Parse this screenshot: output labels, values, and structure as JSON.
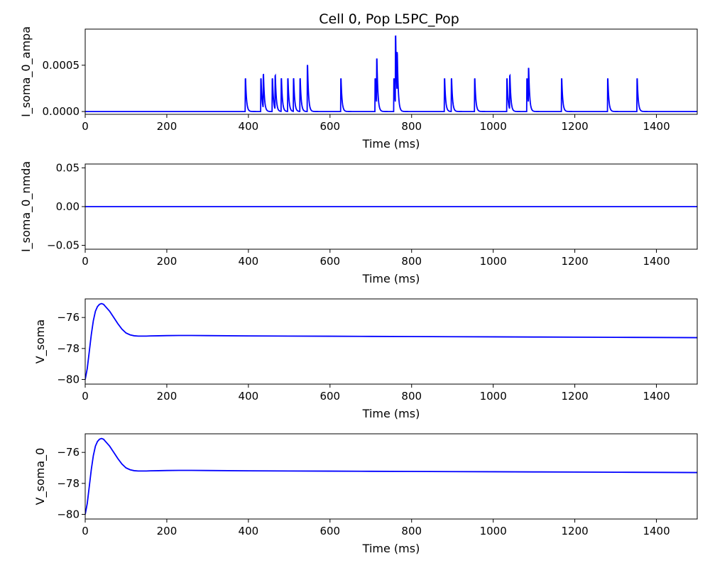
{
  "figure": {
    "title": "Cell 0, Pop L5PC_Pop",
    "line_color": "#0000ff"
  },
  "chart_data": [
    {
      "type": "line",
      "xlabel": "Time (ms)",
      "ylabel": "I_soma_0_ampa",
      "xlim": [
        0,
        1500
      ],
      "ylim": [
        -3e-05,
        0.00089
      ],
      "xticks": [
        0,
        200,
        400,
        600,
        800,
        1000,
        1200,
        1400
      ],
      "xtick_labels": [
        "0",
        "200",
        "400",
        "600",
        "800",
        "1000",
        "1200",
        "1400"
      ],
      "yticks": [
        0.0,
        0.0005
      ],
      "ytick_labels": [
        "0.0000",
        "0.0005"
      ],
      "grid": false,
      "series": [
        {
          "trace": "events",
          "baseline": 0.0,
          "events": [
            [
              392,
              0.00042
            ],
            [
              430,
              0.00042
            ],
            [
              436,
              0.00043
            ],
            [
              458,
              0.00042
            ],
            [
              465,
              0.00043
            ],
            [
              480,
              0.00042
            ],
            [
              496,
              0.00042
            ],
            [
              510,
              0.00042
            ],
            [
              526,
              0.00042
            ],
            [
              544,
              0.00059
            ],
            [
              626,
              0.00042
            ],
            [
              710,
              0.00042
            ],
            [
              714,
              0.00058
            ],
            [
              756,
              0.00042
            ],
            [
              760,
              0.00087
            ],
            [
              764,
              0.00053
            ],
            [
              880,
              0.00042
            ],
            [
              897,
              0.00042
            ],
            [
              954,
              0.00042
            ],
            [
              1033,
              0.00042
            ],
            [
              1040,
              0.00043
            ],
            [
              1082,
              0.00042
            ],
            [
              1086,
              0.00046
            ],
            [
              1167,
              0.00042
            ],
            [
              1280,
              0.00042
            ],
            [
              1352,
              0.00042
            ]
          ]
        }
      ]
    },
    {
      "type": "line",
      "xlabel": "Time (ms)",
      "ylabel": "I_soma_0_nmda",
      "xlim": [
        0,
        1500
      ],
      "ylim": [
        -0.055,
        0.055
      ],
      "xticks": [
        0,
        200,
        400,
        600,
        800,
        1000,
        1200,
        1400
      ],
      "xtick_labels": [
        "0",
        "200",
        "400",
        "600",
        "800",
        "1000",
        "1200",
        "1400"
      ],
      "yticks": [
        -0.05,
        0.0,
        0.05
      ],
      "ytick_labels": [
        "−0.05",
        "0.00",
        "0.05"
      ],
      "grid": false,
      "series": [
        {
          "x": [
            0,
            1500
          ],
          "y": [
            0.0,
            0.0
          ]
        }
      ]
    },
    {
      "type": "line",
      "xlabel": "Time (ms)",
      "ylabel": "V_soma",
      "xlim": [
        0,
        1500
      ],
      "ylim": [
        -80.3,
        -74.8
      ],
      "xticks": [
        0,
        200,
        400,
        600,
        800,
        1000,
        1200,
        1400
      ],
      "xtick_labels": [
        "0",
        "200",
        "400",
        "600",
        "800",
        "1000",
        "1200",
        "1400"
      ],
      "yticks": [
        -80,
        -78,
        -76
      ],
      "ytick_labels": [
        "−80",
        "−78",
        "−76"
      ],
      "grid": false,
      "series": [
        {
          "x": [
            0,
            5,
            10,
            15,
            20,
            25,
            30,
            35,
            40,
            45,
            50,
            60,
            70,
            80,
            90,
            100,
            110,
            120,
            130,
            140,
            150,
            160,
            180,
            200,
            230,
            260,
            300,
            400,
            500,
            600,
            700,
            800,
            900,
            1000,
            1100,
            1200,
            1300,
            1400,
            1500
          ],
          "y": [
            -80.0,
            -79.3,
            -78.2,
            -77.1,
            -76.2,
            -75.6,
            -75.3,
            -75.15,
            -75.1,
            -75.15,
            -75.3,
            -75.6,
            -76.0,
            -76.4,
            -76.75,
            -77.0,
            -77.12,
            -77.18,
            -77.2,
            -77.2,
            -77.2,
            -77.19,
            -77.18,
            -77.17,
            -77.16,
            -77.16,
            -77.17,
            -77.19,
            -77.2,
            -77.21,
            -77.22,
            -77.23,
            -77.24,
            -77.25,
            -77.26,
            -77.27,
            -77.28,
            -77.29,
            -77.3
          ]
        }
      ]
    },
    {
      "type": "line",
      "xlabel": "Time (ms)",
      "ylabel": "V_soma_0",
      "xlim": [
        0,
        1500
      ],
      "ylim": [
        -80.3,
        -74.8
      ],
      "xticks": [
        0,
        200,
        400,
        600,
        800,
        1000,
        1200,
        1400
      ],
      "xtick_labels": [
        "0",
        "200",
        "400",
        "600",
        "800",
        "1000",
        "1200",
        "1400"
      ],
      "yticks": [
        -80,
        -78,
        -76
      ],
      "ytick_labels": [
        "−80",
        "−78",
        "−76"
      ],
      "grid": false,
      "series": [
        {
          "x": [
            0,
            5,
            10,
            15,
            20,
            25,
            30,
            35,
            40,
            45,
            50,
            60,
            70,
            80,
            90,
            100,
            110,
            120,
            130,
            140,
            150,
            160,
            180,
            200,
            230,
            260,
            300,
            400,
            500,
            600,
            700,
            800,
            900,
            1000,
            1100,
            1200,
            1300,
            1400,
            1500
          ],
          "y": [
            -80.0,
            -79.3,
            -78.2,
            -77.1,
            -76.2,
            -75.6,
            -75.3,
            -75.15,
            -75.1,
            -75.15,
            -75.3,
            -75.6,
            -76.0,
            -76.4,
            -76.75,
            -77.0,
            -77.12,
            -77.18,
            -77.2,
            -77.2,
            -77.2,
            -77.19,
            -77.18,
            -77.17,
            -77.16,
            -77.16,
            -77.17,
            -77.19,
            -77.2,
            -77.21,
            -77.22,
            -77.23,
            -77.24,
            -77.25,
            -77.26,
            -77.27,
            -77.28,
            -77.29,
            -77.3
          ]
        }
      ]
    }
  ]
}
